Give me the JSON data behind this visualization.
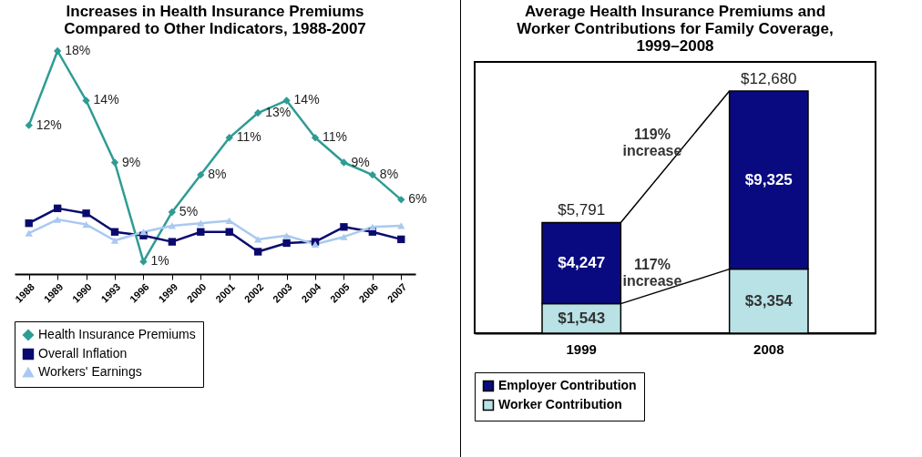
{
  "chart_data": [
    {
      "type": "line",
      "title": "Increases in Health Insurance Premiums\nCompared to Other Indicators, 1988-2007",
      "categories": [
        "1988",
        "1989",
        "1990",
        "1993",
        "1996",
        "1999",
        "2000",
        "2001",
        "2002",
        "2003",
        "2004",
        "2005",
        "2006",
        "2007"
      ],
      "series": [
        {
          "name": "Health Insurance Premiums",
          "color": "#2e9c94",
          "marker": "diamond",
          "values": [
            12,
            18,
            14,
            9,
            1,
            5,
            8,
            11,
            13,
            14,
            11,
            9,
            8,
            6
          ],
          "value_labels": [
            "12%",
            "18%",
            "14%",
            "9%",
            "1%",
            "5%",
            "8%",
            "11%",
            "13%",
            "14%",
            "11%",
            "9%",
            "8%",
            "6%"
          ]
        },
        {
          "name": "Overall Inflation",
          "color": "#0a0a6e",
          "marker": "square",
          "values": [
            4.1,
            5.3,
            4.9,
            3.4,
            3.1,
            2.6,
            3.4,
            3.4,
            1.8,
            2.5,
            2.6,
            3.8,
            3.4,
            2.8
          ]
        },
        {
          "name": "Workers' Earnings",
          "color": "#a9c9f0",
          "marker": "triangle",
          "values": [
            3.3,
            4.4,
            4.0,
            2.7,
            3.4,
            3.9,
            4.1,
            4.3,
            2.8,
            3.1,
            2.4,
            3.0,
            3.8,
            3.9
          ]
        }
      ],
      "legend": "bottom",
      "tick_labels": "x",
      "line_style": "solid"
    },
    {
      "type": "bar",
      "stacked": true,
      "title": "Average Health Insurance Premiums and\nWorker Contributions for Family Coverage,\n1999–2008",
      "categories": [
        "1999",
        "2008"
      ],
      "series": [
        {
          "name": "Worker Contribution",
          "color": "#b8e2e6",
          "values": [
            1543,
            3354
          ],
          "value_labels": [
            "$1,543",
            "$3,354"
          ]
        },
        {
          "name": "Employer Contribution",
          "color": "#0a0a80",
          "values": [
            4247,
            9325
          ],
          "value_labels": [
            "$4,247",
            "$9,325"
          ]
        }
      ],
      "totals": [
        "$5,791",
        "$12,680"
      ],
      "annotations": [
        "119% increase",
        "117% increase"
      ],
      "legend": "bottom",
      "tick_labels": "x"
    }
  ]
}
